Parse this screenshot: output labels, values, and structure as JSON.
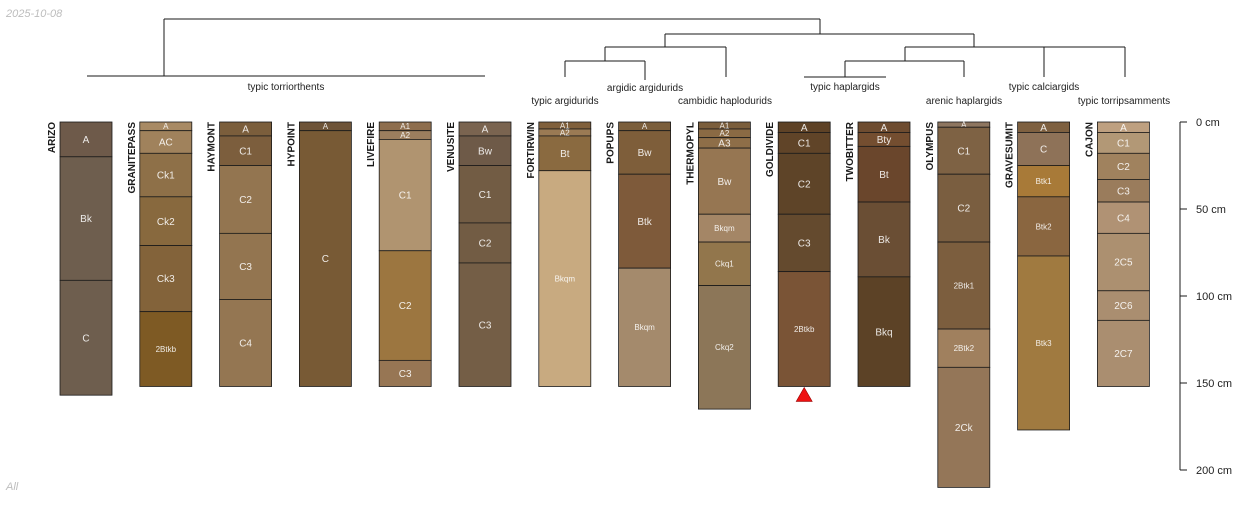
{
  "corner_date": "2025-10-08",
  "corner_footer": "All",
  "colors": {
    "tree": "#1a1a1a",
    "text": "#222222",
    "outline": "#1a1a1a",
    "marker": "#ee1111"
  },
  "depth_axis": {
    "unit": "cm",
    "ticks": [
      {
        "depth": 0,
        "label": "0 cm"
      },
      {
        "depth": 50,
        "label": "50 cm"
      },
      {
        "depth": 100,
        "label": "100 cm"
      },
      {
        "depth": 150,
        "label": "150 cm"
      },
      {
        "depth": 200,
        "label": "200 cm"
      }
    ]
  },
  "profiles": [
    {
      "id": "arizo",
      "name": "ARIZO",
      "horizons": [
        {
          "name": "A",
          "top": 0,
          "bottom": 20,
          "color": "#6e5a4a"
        },
        {
          "name": "Bk",
          "top": 20,
          "bottom": 91,
          "color": "#6e5e4e"
        },
        {
          "name": "C",
          "top": 91,
          "bottom": 157,
          "color": "#6e5e4e"
        }
      ]
    },
    {
      "id": "granitepass",
      "name": "GRANITEPASS",
      "horizons": [
        {
          "name": "A",
          "top": 0,
          "bottom": 5,
          "color": "#a88a64"
        },
        {
          "name": "AC",
          "top": 5,
          "bottom": 18,
          "color": "#a0825c"
        },
        {
          "name": "Ck1",
          "top": 18,
          "bottom": 43,
          "color": "#8e7048"
        },
        {
          "name": "Ck2",
          "top": 43,
          "bottom": 71,
          "color": "#88693e"
        },
        {
          "name": "Ck3",
          "top": 71,
          "bottom": 109,
          "color": "#83633a"
        },
        {
          "name": "2Btkb",
          "top": 109,
          "bottom": 152,
          "color": "#7e5a24"
        }
      ]
    },
    {
      "id": "haymont",
      "name": "HAYMONT",
      "horizons": [
        {
          "name": "A",
          "top": 0,
          "bottom": 8,
          "color": "#7b5e3c"
        },
        {
          "name": "C1",
          "top": 8,
          "bottom": 25,
          "color": "#7c5e3d"
        },
        {
          "name": "C2",
          "top": 25,
          "bottom": 64,
          "color": "#937550"
        },
        {
          "name": "C3",
          "top": 64,
          "bottom": 102,
          "color": "#937550"
        },
        {
          "name": "C4",
          "top": 102,
          "bottom": 152,
          "color": "#947652"
        }
      ]
    },
    {
      "id": "hypoint",
      "name": "HYPOINT",
      "horizons": [
        {
          "name": "A",
          "top": 0,
          "bottom": 5,
          "color": "#6e5438"
        },
        {
          "name": "C",
          "top": 5,
          "bottom": 152,
          "color": "#785a35"
        }
      ]
    },
    {
      "id": "livefire",
      "name": "LIVEFIRE",
      "horizons": [
        {
          "name": "A1",
          "top": 0,
          "bottom": 5,
          "color": "#8e6e4e"
        },
        {
          "name": "A2",
          "top": 5,
          "bottom": 10,
          "color": "#9c7e5e"
        },
        {
          "name": "C1",
          "top": 10,
          "bottom": 74,
          "color": "#b09470"
        },
        {
          "name": "C2",
          "top": 74,
          "bottom": 137,
          "color": "#9c7640"
        },
        {
          "name": "C3",
          "top": 137,
          "bottom": 152,
          "color": "#977654"
        }
      ]
    },
    {
      "id": "venusite",
      "name": "VENUSITE",
      "horizons": [
        {
          "name": "A",
          "top": 0,
          "bottom": 8,
          "color": "#7a6450"
        },
        {
          "name": "Bw",
          "top": 8,
          "bottom": 25,
          "color": "#6e5a48"
        },
        {
          "name": "C1",
          "top": 25,
          "bottom": 58,
          "color": "#725c44"
        },
        {
          "name": "C2",
          "top": 58,
          "bottom": 81,
          "color": "#725c44"
        },
        {
          "name": "C3",
          "top": 81,
          "bottom": 152,
          "color": "#745e46"
        }
      ]
    },
    {
      "id": "fortirwin",
      "name": "FORTIRWIN",
      "horizons": [
        {
          "name": "A1",
          "top": 0,
          "bottom": 4,
          "color": "#80603c"
        },
        {
          "name": "A2",
          "top": 4,
          "bottom": 8,
          "color": "#9a7a54"
        },
        {
          "name": "Bt",
          "top": 8,
          "bottom": 28,
          "color": "#8a6a40"
        },
        {
          "name": "Bkqm",
          "top": 28,
          "bottom": 152,
          "color": "#c8aa80"
        }
      ]
    },
    {
      "id": "popups",
      "name": "POPUPS",
      "horizons": [
        {
          "name": "A",
          "top": 0,
          "bottom": 5,
          "color": "#7b5e3c"
        },
        {
          "name": "Bw",
          "top": 5,
          "bottom": 30,
          "color": "#7e5e3a"
        },
        {
          "name": "Btk",
          "top": 30,
          "bottom": 84,
          "color": "#7e5a3a"
        },
        {
          "name": "Bkqm",
          "top": 84,
          "bottom": 152,
          "color": "#a48a6c"
        }
      ]
    },
    {
      "id": "thermopyl",
      "name": "THERMOPYL",
      "horizons": [
        {
          "name": "A1",
          "top": 0,
          "bottom": 4,
          "color": "#7b5e3c"
        },
        {
          "name": "A2",
          "top": 4,
          "bottom": 9,
          "color": "#8a6a44"
        },
        {
          "name": "A3",
          "top": 9,
          "bottom": 15,
          "color": "#8e6e48"
        },
        {
          "name": "Bw",
          "top": 15,
          "bottom": 53,
          "color": "#967652"
        },
        {
          "name": "Bkqm",
          "top": 53,
          "bottom": 69,
          "color": "#a48666"
        },
        {
          "name": "Ckq1",
          "top": 69,
          "bottom": 94,
          "color": "#92764c"
        },
        {
          "name": "Ckq2",
          "top": 94,
          "bottom": 165,
          "color": "#8c7658"
        }
      ]
    },
    {
      "id": "goldivide",
      "name": "GOLDIVIDE",
      "horizons": [
        {
          "name": "A",
          "top": 0,
          "bottom": 6,
          "color": "#5e4226"
        },
        {
          "name": "C1",
          "top": 6,
          "bottom": 18,
          "color": "#604428"
        },
        {
          "name": "C2",
          "top": 18,
          "bottom": 53,
          "color": "#5e4428"
        },
        {
          "name": "C3",
          "top": 53,
          "bottom": 86,
          "color": "#644a2e"
        },
        {
          "name": "2Btkb",
          "top": 86,
          "bottom": 152,
          "color": "#7a5436"
        }
      ],
      "marker": true
    },
    {
      "id": "twobitter",
      "name": "TWOBITTER",
      "horizons": [
        {
          "name": "A",
          "top": 0,
          "bottom": 6,
          "color": "#6e4c30"
        },
        {
          "name": "Bty",
          "top": 6,
          "bottom": 14,
          "color": "#744e30"
        },
        {
          "name": "Bt",
          "top": 14,
          "bottom": 46,
          "color": "#6a462c"
        },
        {
          "name": "Bk",
          "top": 46,
          "bottom": 89,
          "color": "#6a4e34"
        },
        {
          "name": "Bkq",
          "top": 89,
          "bottom": 152,
          "color": "#5c4226"
        }
      ]
    },
    {
      "id": "olympus",
      "name": "OLYMPUS",
      "horizons": [
        {
          "name": "A",
          "top": 0,
          "bottom": 3,
          "color": "#8e7660"
        },
        {
          "name": "C1",
          "top": 3,
          "bottom": 30,
          "color": "#7e6244"
        },
        {
          "name": "C2",
          "top": 30,
          "bottom": 69,
          "color": "#7a5e40"
        },
        {
          "name": "2Btk1",
          "top": 69,
          "bottom": 119,
          "color": "#7c5e3e"
        },
        {
          "name": "2Btk2",
          "top": 119,
          "bottom": 141,
          "color": "#a0805e"
        },
        {
          "name": "2Ck",
          "top": 141,
          "bottom": 210,
          "color": "#947658"
        }
      ]
    },
    {
      "id": "gravesumit",
      "name": "GRAVESUMIT",
      "horizons": [
        {
          "name": "A",
          "top": 0,
          "bottom": 6,
          "color": "#7e6040"
        },
        {
          "name": "C",
          "top": 6,
          "bottom": 25,
          "color": "#8e7258"
        },
        {
          "name": "Btk1",
          "top": 25,
          "bottom": 43,
          "color": "#a87a38"
        },
        {
          "name": "Btk2",
          "top": 43,
          "bottom": 77,
          "color": "#8a6640"
        },
        {
          "name": "Btk3",
          "top": 77,
          "bottom": 177,
          "color": "#a07a40"
        }
      ]
    },
    {
      "id": "cajon",
      "name": "CAJON",
      "horizons": [
        {
          "name": "A",
          "top": 0,
          "bottom": 6,
          "color": "#bea080"
        },
        {
          "name": "C1",
          "top": 6,
          "bottom": 18,
          "color": "#b29876"
        },
        {
          "name": "C2",
          "top": 18,
          "bottom": 33,
          "color": "#a0825e"
        },
        {
          "name": "C3",
          "top": 33,
          "bottom": 46,
          "color": "#9a7c5c"
        },
        {
          "name": "C4",
          "top": 46,
          "bottom": 64,
          "color": "#b09274"
        },
        {
          "name": "2C5",
          "top": 64,
          "bottom": 97,
          "color": "#ac9070"
        },
        {
          "name": "2C6",
          "top": 97,
          "bottom": 114,
          "color": "#aa8e70"
        },
        {
          "name": "2C7",
          "top": 114,
          "bottom": 152,
          "color": "#aa8e70"
        }
      ]
    }
  ],
  "taxa": [
    {
      "id": "typic-torriorthents",
      "label": "typic torriorthents"
    },
    {
      "id": "typic-argidurids",
      "label": "typic argidurids"
    },
    {
      "id": "argidic-argidurids",
      "label": "argidic argidurids"
    },
    {
      "id": "cambidic-haplodurids",
      "label": "cambidic haplodurids"
    },
    {
      "id": "typic-haplargids",
      "label": "typic haplargids"
    },
    {
      "id": "arenic-haplargids",
      "label": "arenic haplargids"
    },
    {
      "id": "typic-calciargids",
      "label": "typic calciargids"
    },
    {
      "id": "typic-torripsamments",
      "label": "typic torripsamments"
    }
  ]
}
